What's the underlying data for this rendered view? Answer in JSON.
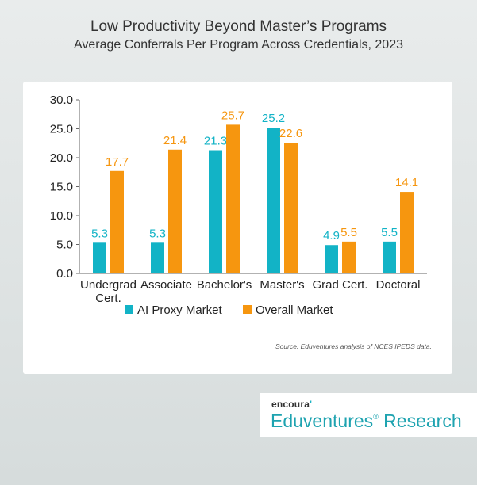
{
  "title": "Low Productivity Beyond Master’s Programs",
  "subtitle": "Average Conferrals Per Program Across Credentials, 2023",
  "source": "Source: Eduventures analysis of NCES IPEDS data.",
  "brand": {
    "logo_text": "encoura",
    "logo_mark": "'",
    "name_main": "Eduventures",
    "name_reg": "®",
    "name_rest": " Research"
  },
  "colors": {
    "ai_proxy": "#12b3c6",
    "overall": "#f6960f"
  },
  "chart_data": {
    "type": "bar",
    "categories": [
      [
        "Undergrad",
        "Cert."
      ],
      [
        "Associate"
      ],
      [
        "Bachelor's"
      ],
      [
        "Master's"
      ],
      [
        "Grad Cert."
      ],
      [
        "Doctoral"
      ]
    ],
    "series": [
      {
        "name": "AI Proxy Market",
        "values": [
          5.3,
          5.3,
          21.3,
          25.2,
          4.9,
          5.5
        ]
      },
      {
        "name": "Overall Market",
        "values": [
          17.7,
          21.4,
          25.7,
          22.6,
          5.5,
          14.1
        ]
      }
    ],
    "y_ticks": [
      "0.0",
      "5.0",
      "10.0",
      "15.0",
      "20.0",
      "25.0",
      "30.0"
    ],
    "ylim": [
      0,
      30
    ],
    "legend_position": "bottom",
    "grid": false
  }
}
